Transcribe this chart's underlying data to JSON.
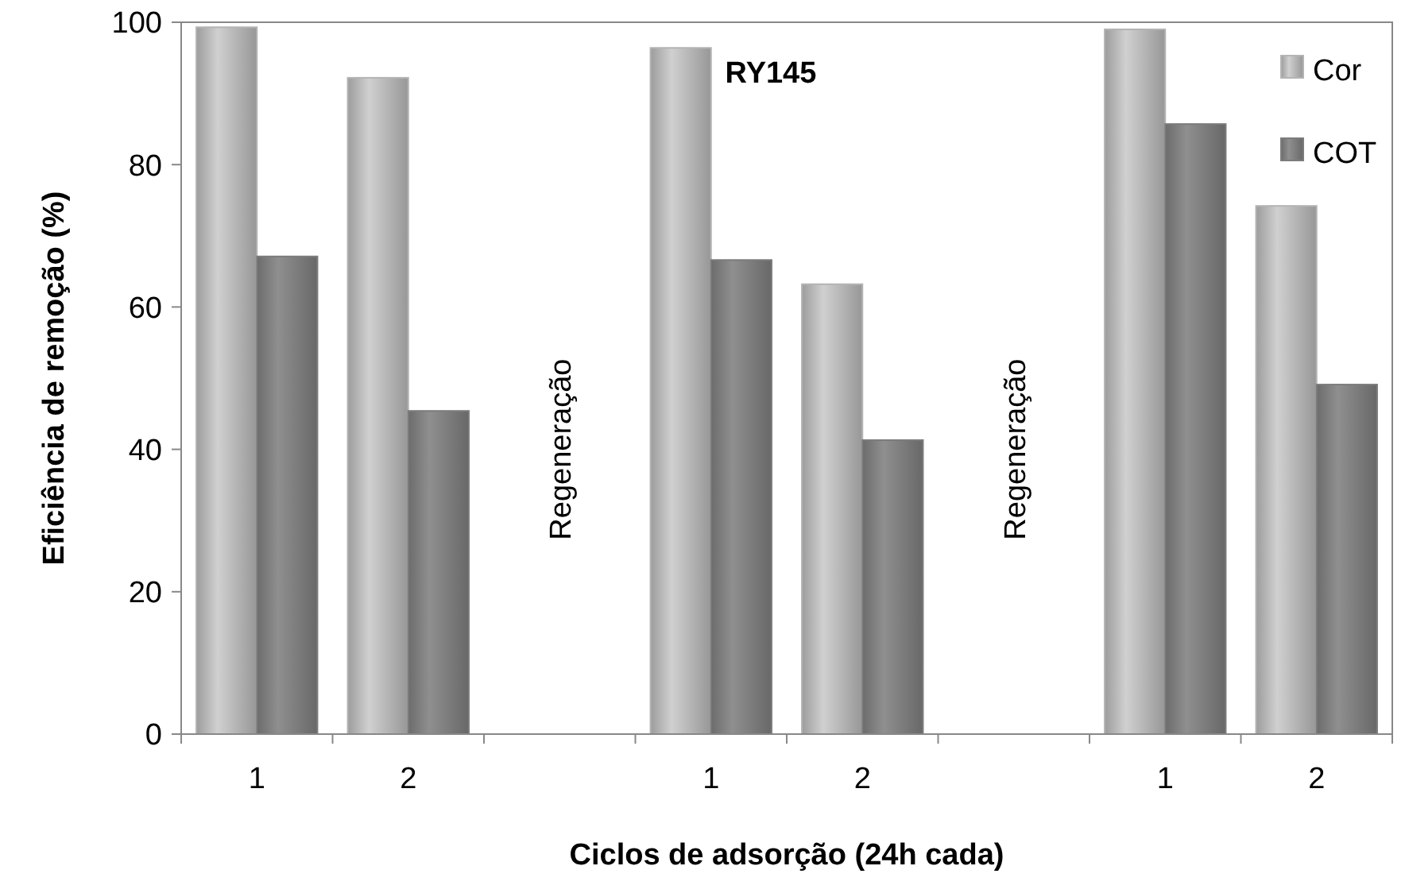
{
  "chart_data": {
    "type": "bar",
    "title": "RY145",
    "xlabel": "Ciclos de adsorção (24h cada)",
    "ylabel": "Eficiência de remoção (%)",
    "categories": [
      "1",
      "2",
      null,
      "1",
      "2",
      null,
      "1",
      "2"
    ],
    "series": [
      {
        "name": "Cor",
        "color": "#b4b4b4",
        "values": [
          99.3,
          92.2,
          null,
          96.4,
          63.2,
          null,
          99,
          74.2
        ]
      },
      {
        "name": "COT",
        "color": "#7c7c7c",
        "values": [
          67.1,
          45.4,
          null,
          66.6,
          41.3,
          null,
          85.7,
          49.1
        ]
      }
    ],
    "annotations": [
      "Regeneração",
      "Regeneração"
    ],
    "ylim": [
      0,
      100
    ],
    "yticks": [
      0,
      20,
      40,
      60,
      80,
      100
    ],
    "grid": false,
    "legend": "top right"
  }
}
